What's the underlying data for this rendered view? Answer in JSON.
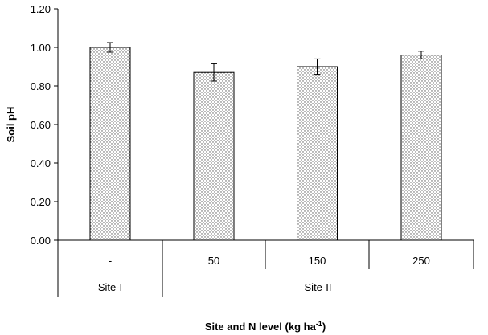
{
  "chart_data": {
    "type": "bar",
    "ylabel": "Soil pH",
    "xlabel": "Site and N level (kg ha",
    "xlabel_sup": "-1",
    "xlabel_end": ")",
    "ylim": [
      0,
      1.2
    ],
    "yticks": [
      "0.00",
      "0.20",
      "0.40",
      "0.60",
      "0.80",
      "1.00",
      "1.20"
    ],
    "categories": [
      "-",
      "50",
      "150",
      "250"
    ],
    "groups": [
      {
        "label": "Site-I",
        "categories": [
          "-"
        ]
      },
      {
        "label": "Site-II",
        "categories": [
          "50",
          "150",
          "250"
        ]
      }
    ],
    "values": [
      1.0,
      0.87,
      0.9,
      0.96
    ],
    "errors": [
      0.025,
      0.045,
      0.04,
      0.02
    ],
    "bar_pattern": "dotted",
    "bar_stroke": "#000000",
    "dot_color": "#555555",
    "grid": false
  }
}
